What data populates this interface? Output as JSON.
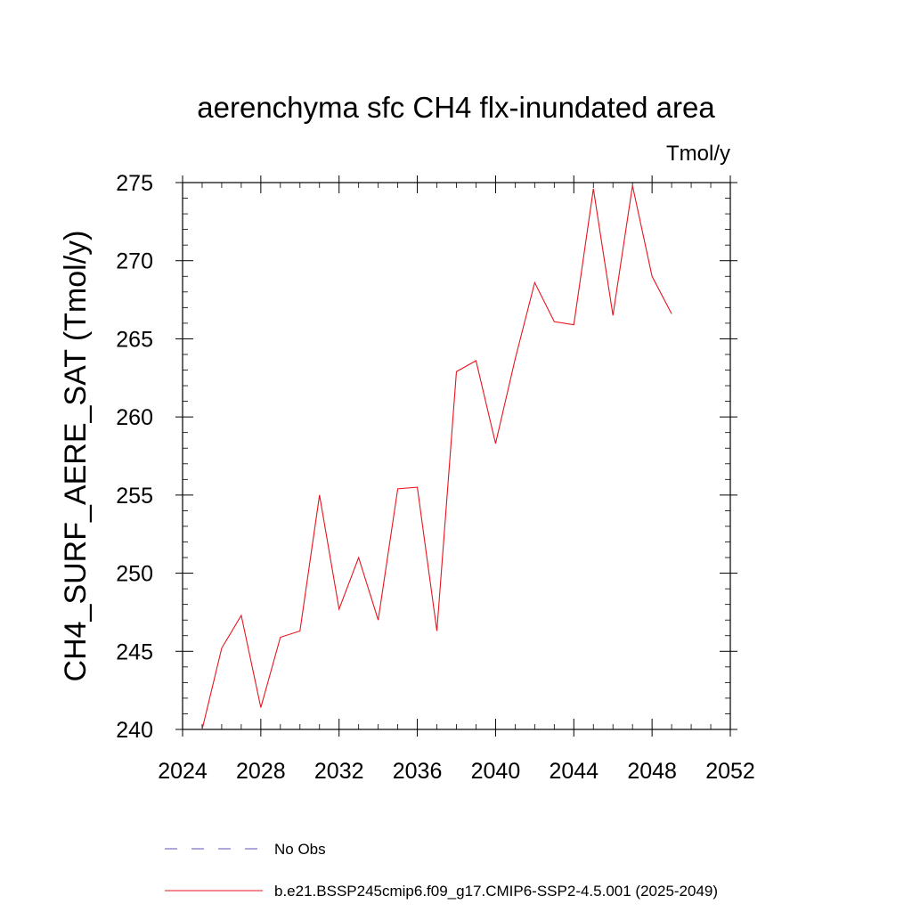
{
  "chart_data": {
    "type": "line",
    "title": "aerenchyma sfc CH4 flx-inundated area",
    "units_label": "Tmol/y",
    "ylabel": "CH4_SURF_AERE_SAT  (Tmol/y)",
    "xlabel": "",
    "xlim": [
      2024,
      2052
    ],
    "ylim": [
      240,
      275
    ],
    "x_ticks": [
      2024,
      2028,
      2032,
      2036,
      2040,
      2044,
      2048,
      2052
    ],
    "y_ticks": [
      240,
      245,
      250,
      255,
      260,
      265,
      270,
      275
    ],
    "grid": false,
    "legend_position": "bottom",
    "series": [
      {
        "name": "No Obs",
        "color": "#5a50b4",
        "style": "dashed",
        "x": [],
        "y": []
      },
      {
        "name": "b.e21.BSSP245cmip6.f09_g17.CMIP6-SSP2-4.5.001 (2025-2049)",
        "color": "#e8141e",
        "style": "solid",
        "x": [
          2025,
          2026,
          2027,
          2028,
          2029,
          2030,
          2031,
          2032,
          2033,
          2034,
          2035,
          2036,
          2037,
          2038,
          2039,
          2040,
          2041,
          2042,
          2043,
          2044,
          2045,
          2046,
          2047,
          2048,
          2049
        ],
        "y": [
          240.0,
          245.2,
          247.3,
          241.4,
          245.9,
          246.3,
          255.0,
          247.7,
          251.0,
          247.0,
          255.4,
          255.5,
          246.3,
          262.9,
          263.6,
          258.3,
          263.7,
          268.6,
          266.1,
          265.9,
          274.6,
          266.5,
          274.8,
          269.0,
          266.6
        ]
      }
    ]
  }
}
